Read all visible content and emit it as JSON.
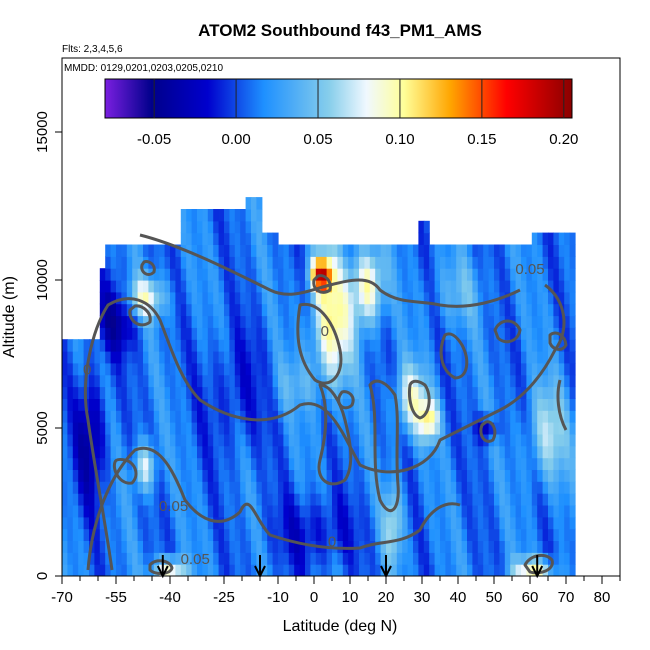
{
  "chart_data": {
    "type": "heatmap",
    "title": "ATOM2 Southbound f43_PM1_AMS",
    "subtitle_flights": "Flts: 2,3,4,5,6",
    "subtitle_dates": "MMDD: 0129,0201,0203,0205,0210",
    "xlabel": "Latitude (deg N)",
    "ylabel": "Altitude (m)",
    "xlim": [
      -70,
      85
    ],
    "ylim": [
      0,
      17500
    ],
    "x_ticks": [
      -70,
      -55,
      -40,
      -25,
      -10,
      0,
      10,
      20,
      30,
      40,
      50,
      60,
      70,
      80
    ],
    "x_tick_labels": [
      "-70",
      "-55",
      "-40",
      "-25",
      "-10",
      "0",
      "10",
      "20",
      "30",
      "40",
      "50",
      "60",
      "70",
      "80"
    ],
    "y_ticks": [
      0,
      5000,
      10000,
      15000
    ],
    "y_tick_labels": [
      "0",
      "5000",
      "10000",
      "15000"
    ],
    "colorbar": {
      "range": [
        -0.08,
        0.205
      ],
      "ticks": [
        -0.05,
        0.0,
        0.05,
        0.1,
        0.15,
        0.2
      ],
      "tick_labels": [
        "-0.05",
        "0.00",
        "0.05",
        "0.10",
        "0.15",
        "0.20"
      ],
      "colors": [
        "#7a1fe0",
        "#00008b",
        "#0000cd",
        "#1e90ff",
        "#87ceeb",
        "#f0f8ff",
        "#ffff99",
        "#ffa500",
        "#ff0000",
        "#8b0000"
      ]
    },
    "contour_labels": [
      {
        "text": "0.05",
        "lat": 60,
        "alt": 10200
      },
      {
        "text": "0",
        "lat": 3,
        "alt": 8100
      },
      {
        "text": "0",
        "lat": -63,
        "alt": 6800
      },
      {
        "text": "0.05",
        "lat": -39,
        "alt": 2200
      },
      {
        "text": "0",
        "lat": 5,
        "alt": 1000
      },
      {
        "text": "0.05",
        "lat": -33,
        "alt": 400
      }
    ],
    "flight_markers_lat": [
      -42,
      -15,
      20,
      62
    ]
  }
}
